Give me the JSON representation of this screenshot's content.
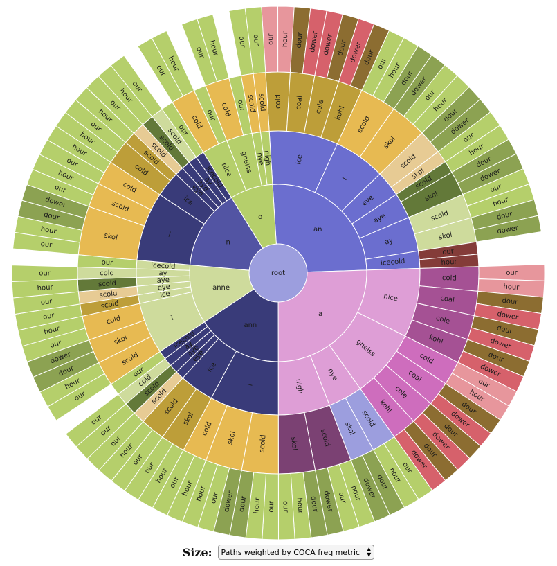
{
  "controls": {
    "size_label": "Size:",
    "size_option": "Paths weighted by COCA freq metric",
    "select_icon": "updown-arrow-icon"
  },
  "chart_data": {
    "type": "sunburst",
    "title": "",
    "root": {
      "name": "root",
      "children": [
        {
          "name": "an",
          "children": [
            {
              "name": "ice",
              "children": [
                {
                  "name": "cold",
                  "children": [
                    {
                      "name": "our"
                    },
                    {
                      "name": "hour"
                    }
                  ]
                },
                {
                  "name": "coal",
                  "children": [
                    {
                      "name": "dour"
                    },
                    {
                      "name": "dower"
                    }
                  ]
                },
                {
                  "name": "cole",
                  "children": [
                    {
                      "name": "dower"
                    },
                    {
                      "name": "dour"
                    }
                  ]
                },
                {
                  "name": "kohl",
                  "children": [
                    {
                      "name": "dower"
                    },
                    {
                      "name": "dour"
                    }
                  ]
                }
              ]
            },
            {
              "name": "i",
              "children": [
                {
                  "name": "scold",
                  "children": [
                    {
                      "name": "our"
                    },
                    {
                      "name": "hour"
                    },
                    {
                      "name": "dour"
                    }
                  ]
                },
                {
                  "name": "skol",
                  "children": [
                    {
                      "name": "dower"
                    },
                    {
                      "name": "our"
                    },
                    {
                      "name": "hour"
                    }
                  ]
                }
              ]
            },
            {
              "name": "eye",
              "children": [
                {
                  "name": "scold",
                  "children": [
                    {
                      "name": "dour"
                    },
                    {
                      "name": "dower"
                    }
                  ]
                },
                {
                  "name": "skol",
                  "children": [
                    {
                      "name": "our"
                    }
                  ]
                }
              ]
            },
            {
              "name": "aye",
              "children": [
                {
                  "name": "scold",
                  "children": [
                    {
                      "name": "hour"
                    }
                  ]
                },
                {
                  "name": "skol",
                  "children": [
                    {
                      "name": "dour"
                    },
                    {
                      "name": "dower"
                    }
                  ]
                }
              ]
            },
            {
              "name": "ay",
              "children": [
                {
                  "name": "scold",
                  "children": [
                    {
                      "name": "our"
                    },
                    {
                      "name": "hour"
                    }
                  ]
                },
                {
                  "name": "skol",
                  "children": [
                    {
                      "name": "dour"
                    },
                    {
                      "name": "dower"
                    }
                  ]
                }
              ]
            },
            {
              "name": "icecold",
              "children": [
                {
                  "name": "our"
                },
                {
                  "name": "hour"
                }
              ]
            }
          ]
        },
        {
          "name": "a",
          "children": [
            {
              "name": "nice",
              "children": [
                {
                  "name": "cold",
                  "children": [
                    {
                      "name": "our"
                    },
                    {
                      "name": "hour"
                    }
                  ]
                },
                {
                  "name": "coal",
                  "children": [
                    {
                      "name": "dour"
                    },
                    {
                      "name": "dower"
                    }
                  ]
                },
                {
                  "name": "cole",
                  "children": [
                    {
                      "name": "dour"
                    },
                    {
                      "name": "dower"
                    }
                  ]
                },
                {
                  "name": "kohl",
                  "children": [
                    {
                      "name": "dour"
                    },
                    {
                      "name": "dower"
                    }
                  ]
                }
              ]
            },
            {
              "name": "gneiss",
              "children": [
                {
                  "name": "cold",
                  "children": [
                    {
                      "name": "our"
                    },
                    {
                      "name": "hour"
                    }
                  ]
                },
                {
                  "name": "coal",
                  "children": [
                    {
                      "name": "dour"
                    },
                    {
                      "name": "dower"
                    }
                  ]
                },
                {
                  "name": "cole",
                  "children": [
                    {
                      "name": "dour"
                    },
                    {
                      "name": "dower"
                    }
                  ]
                },
                {
                  "name": "kohl",
                  "children": [
                    {
                      "name": "dour"
                    },
                    {
                      "name": "dower"
                    }
                  ]
                }
              ]
            },
            {
              "name": "nye",
              "children": [
                {
                  "name": "scold",
                  "children": [
                    {
                      "name": "our"
                    },
                    {
                      "name": "hour"
                    }
                  ]
                },
                {
                  "name": "skol",
                  "children": [
                    {
                      "name": "dour"
                    },
                    {
                      "name": "dower"
                    }
                  ]
                }
              ]
            },
            {
              "name": "nigh",
              "children": [
                {
                  "name": "scold",
                  "children": [
                    {
                      "name": "hour"
                    },
                    {
                      "name": "our"
                    },
                    {
                      "name": "dower"
                    }
                  ]
                },
                {
                  "name": "skol",
                  "children": [
                    {
                      "name": "dour"
                    },
                    {
                      "name": "hour"
                    },
                    {
                      "name": "our"
                    }
                  ]
                }
              ]
            }
          ]
        },
        {
          "name": "ann",
          "children": [
            {
              "name": "i",
              "children": [
                {
                  "name": "scold",
                  "children": [
                    {
                      "name": "our"
                    },
                    {
                      "name": "hour"
                    },
                    {
                      "name": "dour"
                    }
                  ]
                },
                {
                  "name": "skol",
                  "children": [
                    {
                      "name": "dower"
                    },
                    {
                      "name": "our"
                    },
                    {
                      "name": "hour"
                    }
                  ]
                },
                {
                  "name": "cold",
                  "children": [
                    {
                      "name": "hour"
                    },
                    {
                      "name": "our"
                    }
                  ]
                }
              ]
            },
            {
              "name": "ice",
              "children": [
                {
                  "name": "skol",
                  "children": [
                    {
                      "name": "hour"
                    },
                    {
                      "name": "our"
                    }
                  ]
                },
                {
                  "name": "scold",
                  "children": [
                    {
                      "name": "our"
                    },
                    {
                      "name": "hour"
                    }
                  ]
                }
              ]
            },
            {
              "name": "eye",
              "children": [
                {
                  "name": "scold",
                  "children": [
                    {
                      "name": "our"
                    }
                  ]
                }
              ]
            },
            {
              "name": "aye",
              "children": [
                {
                  "name": "scold",
                  "children": [
                    {
                      "name": "our"
                    }
                  ]
                }
              ]
            },
            {
              "name": "ay",
              "children": [
                {
                  "name": "cold",
                  "children": [
                    {
                      "name": "our"
                    }
                  ]
                }
              ]
            },
            {
              "name": "icecold",
              "children": [
                {
                  "name": "our"
                }
              ]
            }
          ]
        },
        {
          "name": "anne",
          "children": [
            {
              "name": "i",
              "children": [
                {
                  "name": "scold",
                  "children": [
                    {
                      "name": "our"
                    },
                    {
                      "name": "hour"
                    }
                  ]
                },
                {
                  "name": "skol",
                  "children": [
                    {
                      "name": "dour"
                    },
                    {
                      "name": "dower"
                    }
                  ]
                },
                {
                  "name": "cold",
                  "children": [
                    {
                      "name": "our"
                    },
                    {
                      "name": "hour"
                    }
                  ]
                }
              ]
            },
            {
              "name": "ice",
              "children": [
                {
                  "name": "scold",
                  "children": [
                    {
                      "name": "our"
                    }
                  ]
                }
              ]
            },
            {
              "name": "eye",
              "children": [
                {
                  "name": "scold",
                  "children": [
                    {
                      "name": "our"
                    }
                  ]
                }
              ]
            },
            {
              "name": "aye",
              "children": [
                {
                  "name": "scold",
                  "children": [
                    {
                      "name": "hour"
                    }
                  ]
                }
              ]
            },
            {
              "name": "ay",
              "children": [
                {
                  "name": "cold",
                  "children": [
                    {
                      "name": "our"
                    }
                  ]
                }
              ]
            },
            {
              "name": "icecold",
              "children": [
                {
                  "name": "our"
                }
              ]
            }
          ]
        },
        {
          "name": "n",
          "children": [
            {
              "name": "i",
              "children": [
                {
                  "name": "skol",
                  "children": [
                    {
                      "name": "our"
                    },
                    {
                      "name": "hour"
                    },
                    {
                      "name": "dour"
                    },
                    {
                      "name": "dower"
                    }
                  ]
                },
                {
                  "name": "scold",
                  "children": [
                    {
                      "name": "our"
                    },
                    {
                      "name": "hour"
                    }
                  ]
                },
                {
                  "name": "cold",
                  "children": [
                    {
                      "name": "our"
                    },
                    {
                      "name": "hour"
                    }
                  ]
                }
              ]
            },
            {
              "name": "ice",
              "children": [
                {
                  "name": "cold",
                  "children": [
                    {
                      "name": "hour"
                    },
                    {
                      "name": "our"
                    }
                  ]
                },
                {
                  "name": "scold",
                  "children": [
                    {
                      "name": "hour"
                    }
                  ]
                }
              ]
            },
            {
              "name": "eye",
              "children": [
                {
                  "name": "scold",
                  "children": [
                    {
                      "name": "our"
                    }
                  ]
                }
              ]
            },
            {
              "name": "aye",
              "children": [
                {
                  "name": "scold",
                  "children": [
                    {
                      "name": "hour"
                    }
                  ]
                }
              ]
            },
            {
              "name": "ay",
              "children": [
                {
                  "name": "scold",
                  "children": [
                    {
                      "name": "our"
                    }
                  ]
                }
              ]
            },
            {
              "name": "icecold",
              "children": [
                {
                  "name": "our"
                }
              ]
            }
          ]
        },
        {
          "name": "o",
          "children": [
            {
              "name": "nice",
              "children": [
                {
                  "name": "cold",
                  "children": [
                    {
                      "name": "our"
                    },
                    {
                      "name": "hour"
                    }
                  ]
                },
                {
                  "name": "our"
                }
              ]
            },
            {
              "name": "gneiss",
              "children": [
                {
                  "name": "cold",
                  "children": [
                    {
                      "name": "our"
                    },
                    {
                      "name": "hour"
                    }
                  ]
                },
                {
                  "name": "our"
                }
              ]
            },
            {
              "name": "nye",
              "children": [
                {
                  "name": "scold",
                  "children": [
                    {
                      "name": "our"
                    }
                  ]
                }
              ]
            },
            {
              "name": "nigh",
              "children": [
                {
                  "name": "scold",
                  "children": [
                    {
                      "name": "our"
                    }
                  ]
                }
              ]
            }
          ]
        }
      ]
    },
    "colors": {
      "root": "#9c9ede",
      "ring1": "#6b6ecf",
      "an": "#6b6ecf",
      "a": "#de9ed6",
      "ann": "#393b79",
      "anne": "#cedb9c",
      "n": "#5254a3",
      "o": "#b5cf6b",
      "ice": "#bd9e39",
      "i_an": "#e7ba52",
      "eye": "#e7cb94",
      "aye": "#637939",
      "ay": "#cedb9c",
      "icecold": "#843c39",
      "cold": "#e7ba52",
      "coal": "#bd9e39",
      "cole": "#bd9e39",
      "kohl": "#bd9e39",
      "scold": "#e7ba52",
      "skol": "#e7ba52",
      "a_cold": "#a55194",
      "a_coal": "#a55194",
      "a_cole": "#a55194",
      "a_kohl": "#a55194",
      "gneiss_cold": "#ce6dbd",
      "gneiss_coal": "#ce6dbd",
      "gneiss_cole": "#ce6dbd",
      "gneiss_kohl": "#ce6dbd",
      "nye_scold": "#9c9ede",
      "nye_skol": "#9c9ede",
      "nigh_scold": "#7b4173",
      "nigh_skol": "#7b4173",
      "our": "#b5cf6b",
      "hour": "#b5cf6b",
      "dour": "#8ca252",
      "dower": "#8ca252",
      "hour_pink": "#e7969c",
      "our_pink": "#e7969c",
      "dour_brown": "#8c6d31",
      "dower_red": "#d6616b"
    }
  }
}
